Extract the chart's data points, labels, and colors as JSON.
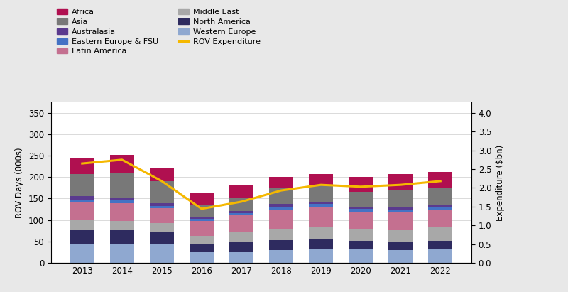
{
  "years": [
    2013,
    2014,
    2015,
    2016,
    2017,
    2018,
    2019,
    2020,
    2021,
    2022
  ],
  "segments": {
    "Western Europe": [
      43,
      43,
      44,
      24,
      26,
      29,
      32,
      32,
      30,
      32
    ],
    "North America": [
      33,
      33,
      27,
      21,
      22,
      24,
      24,
      19,
      19,
      19
    ],
    "Middle East": [
      25,
      22,
      22,
      18,
      23,
      27,
      29,
      27,
      27,
      32
    ],
    "Latin America": [
      42,
      42,
      35,
      35,
      40,
      45,
      45,
      42,
      42,
      42
    ],
    "Eastern Europe & FSU": [
      5,
      5,
      4,
      4,
      5,
      6,
      7,
      6,
      6,
      6
    ],
    "Australasia": [
      8,
      8,
      7,
      4,
      5,
      6,
      6,
      4,
      5,
      5
    ],
    "Asia": [
      52,
      57,
      52,
      28,
      32,
      38,
      40,
      36,
      40,
      40
    ],
    "Africa": [
      37,
      42,
      29,
      29,
      29,
      25,
      25,
      34,
      38,
      36
    ]
  },
  "colors": {
    "Western Europe": "#8fa8d0",
    "North America": "#2e2b5f",
    "Middle East": "#a8a8a8",
    "Latin America": "#c47090",
    "Eastern Europe & FSU": "#4472c4",
    "Australasia": "#5a3a8e",
    "Asia": "#787878",
    "Africa": "#b01050"
  },
  "expenditure": [
    2.65,
    2.75,
    2.18,
    1.44,
    1.63,
    1.93,
    2.08,
    2.03,
    2.08,
    2.18
  ],
  "ylabel_left": "ROV Days (000s)",
  "ylabel_right": "Expenditure ($bn)",
  "ylim_left": [
    0,
    375
  ],
  "ylim_right": [
    0,
    4.285
  ],
  "yticks_left": [
    0,
    50,
    100,
    150,
    200,
    250,
    300,
    350
  ],
  "yticks_right": [
    0.0,
    0.5,
    1.0,
    1.5,
    2.0,
    2.5,
    3.0,
    3.5,
    4.0
  ],
  "expenditure_color": "#f5b800",
  "background_color": "#e8e8e8",
  "plot_bg_color": "#ffffff",
  "legend_order": [
    "Africa",
    "Asia",
    "Australasia",
    "Eastern Europe & FSU",
    "Latin America",
    "Middle East",
    "North America",
    "Western Europe"
  ],
  "bar_order": [
    "Western Europe",
    "North America",
    "Middle East",
    "Latin America",
    "Eastern Europe & FSU",
    "Australasia",
    "Asia",
    "Africa"
  ]
}
